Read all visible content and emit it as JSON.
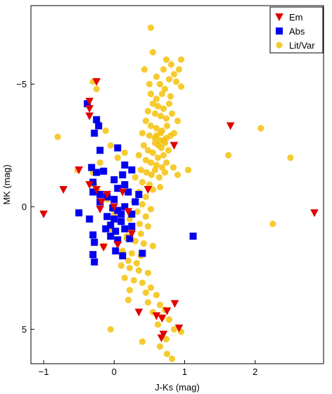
{
  "chart_data": {
    "type": "scatter",
    "title": "",
    "xlabel": "J-Ks (mag)",
    "ylabel": "MK (mag)",
    "xlim": [
      -1.18,
      2.97
    ],
    "ylim": [
      -8.2,
      6.4
    ],
    "y_inverted": true,
    "xticks": [
      {
        "value": -1,
        "label": "−1"
      },
      {
        "value": 0,
        "label": "0"
      },
      {
        "value": 1,
        "label": "1"
      },
      {
        "value": 2,
        "label": "2"
      }
    ],
    "yticks": [
      {
        "value": -5,
        "label": "−5"
      },
      {
        "value": 0,
        "label": "0"
      },
      {
        "value": 5,
        "label": "5"
      }
    ],
    "grid": false,
    "legend_position": "top-right",
    "series": [
      {
        "name": "Lit/Var",
        "marker": "circle",
        "color": "#f4c20d",
        "points": [
          [
            0.52,
            -7.3
          ],
          [
            0.55,
            -6.3
          ],
          [
            0.74,
            -6.0
          ],
          [
            0.81,
            -5.8
          ],
          [
            0.95,
            -6.0
          ],
          [
            0.7,
            -5.6
          ],
          [
            0.85,
            -5.4
          ],
          [
            0.92,
            -5.6
          ],
          [
            0.43,
            -5.6
          ],
          [
            0.78,
            -5.2
          ],
          [
            0.6,
            -5.3
          ],
          [
            0.5,
            -5.0
          ],
          [
            0.65,
            -5.0
          ],
          [
            0.88,
            -5.1
          ],
          [
            0.95,
            -4.9
          ],
          [
            0.72,
            -4.8
          ],
          [
            0.52,
            -4.6
          ],
          [
            0.6,
            -4.4
          ],
          [
            0.68,
            -4.6
          ],
          [
            0.8,
            -4.5
          ],
          [
            0.55,
            -4.2
          ],
          [
            0.62,
            -4.1
          ],
          [
            0.7,
            -4.0
          ],
          [
            0.78,
            -4.2
          ],
          [
            0.48,
            -3.9
          ],
          [
            0.58,
            -3.8
          ],
          [
            0.66,
            -3.7
          ],
          [
            0.74,
            -3.6
          ],
          [
            0.82,
            -3.8
          ],
          [
            0.9,
            -3.5
          ],
          [
            0.45,
            -3.5
          ],
          [
            0.52,
            -3.3
          ],
          [
            0.6,
            -3.2
          ],
          [
            0.68,
            -3.1
          ],
          [
            0.75,
            -3.3
          ],
          [
            0.85,
            -3.0
          ],
          [
            0.4,
            -3.0
          ],
          [
            0.5,
            -2.9
          ],
          [
            0.58,
            -2.8
          ],
          [
            0.65,
            -2.7
          ],
          [
            0.72,
            -2.6
          ],
          [
            0.8,
            -2.9
          ],
          [
            0.42,
            -2.5
          ],
          [
            0.48,
            -2.3
          ],
          [
            0.55,
            -2.2
          ],
          [
            0.62,
            -2.0
          ],
          [
            0.7,
            -2.1
          ],
          [
            0.77,
            -2.3
          ],
          [
            0.35,
            -2.1
          ],
          [
            0.45,
            -1.9
          ],
          [
            0.52,
            -1.8
          ],
          [
            0.6,
            -1.7
          ],
          [
            0.68,
            -1.6
          ],
          [
            0.74,
            -1.8
          ],
          [
            0.38,
            -1.5
          ],
          [
            0.46,
            -1.4
          ],
          [
            0.53,
            -1.3
          ],
          [
            0.58,
            -1.5
          ],
          [
            0.64,
            -1.2
          ],
          [
            0.72,
            -1.4
          ],
          [
            0.84,
            -1.6
          ],
          [
            0.9,
            -1.3
          ],
          [
            1.05,
            -1.5
          ],
          [
            0.3,
            -1.2
          ],
          [
            0.4,
            -1.0
          ],
          [
            0.5,
            -0.9
          ],
          [
            0.55,
            -0.7
          ],
          [
            0.65,
            -0.8
          ],
          [
            0.35,
            -0.6
          ],
          [
            0.45,
            -0.4
          ],
          [
            0.28,
            -0.2
          ],
          [
            0.4,
            -0.1
          ],
          [
            0.52,
            0.1
          ],
          [
            0.33,
            0.2
          ],
          [
            0.45,
            0.4
          ],
          [
            0.22,
            0.5
          ],
          [
            0.36,
            0.7
          ],
          [
            0.48,
            0.8
          ],
          [
            0.25,
            1.0
          ],
          [
            0.38,
            1.1
          ],
          [
            0.18,
            1.3
          ],
          [
            0.3,
            1.4
          ],
          [
            0.42,
            1.5
          ],
          [
            0.55,
            1.6
          ],
          [
            0.12,
            1.8
          ],
          [
            0.25,
            1.9
          ],
          [
            0.38,
            2.0
          ],
          [
            0.2,
            2.2
          ],
          [
            0.32,
            2.3
          ],
          [
            0.1,
            2.4
          ],
          [
            0.22,
            2.5
          ],
          [
            0.35,
            2.6
          ],
          [
            0.48,
            2.7
          ],
          [
            0.15,
            2.9
          ],
          [
            0.28,
            3.0
          ],
          [
            0.4,
            3.1
          ],
          [
            0.52,
            3.3
          ],
          [
            0.22,
            3.4
          ],
          [
            0.45,
            3.5
          ],
          [
            0.6,
            3.6
          ],
          [
            0.2,
            3.8
          ],
          [
            0.48,
            3.9
          ],
          [
            0.65,
            4.0
          ],
          [
            0.72,
            4.2
          ],
          [
            0.55,
            4.3
          ],
          [
            0.68,
            4.5
          ],
          [
            0.78,
            4.6
          ],
          [
            0.62,
            4.8
          ],
          [
            0.85,
            5.0
          ],
          [
            0.74,
            5.4
          ],
          [
            0.95,
            5.1
          ],
          [
            0.4,
            5.5
          ],
          [
            0.75,
            6.0
          ],
          [
            0.82,
            6.2
          ],
          [
            0.65,
            5.7
          ],
          [
            -0.05,
            5.0
          ],
          [
            -0.8,
            -2.85
          ],
          [
            -0.3,
            -5.1
          ],
          [
            -0.25,
            -4.8
          ],
          [
            -0.12,
            -3.1
          ],
          [
            -0.05,
            -2.5
          ],
          [
            0.15,
            -2.2
          ],
          [
            0.05,
            -2.0
          ],
          [
            -0.2,
            -1.8
          ],
          [
            -0.3,
            -1.4
          ],
          [
            -0.52,
            -1.5
          ],
          [
            -0.28,
            -0.9
          ],
          [
            -0.22,
            -0.6
          ],
          [
            -0.1,
            -0.3
          ],
          [
            0.0,
            0.3
          ],
          [
            0.08,
            0.6
          ],
          [
            -0.05,
            0.9
          ],
          [
            0.18,
            1.2
          ],
          [
            0.05,
            1.4
          ],
          [
            -0.15,
            1.6
          ],
          [
            0.12,
            1.9
          ],
          [
            1.62,
            -2.1
          ],
          [
            2.08,
            -3.2
          ],
          [
            2.5,
            -2.0
          ],
          [
            2.25,
            0.7
          ],
          [
            0.63,
            -2.5
          ],
          [
            0.67,
            -2.4
          ],
          [
            0.58,
            -2.6
          ],
          [
            0.7,
            -2.7
          ],
          [
            0.6,
            -2.9
          ],
          [
            0.66,
            -3.0
          ],
          [
            0.74,
            -2.8
          ]
        ]
      },
      {
        "name": "Abs",
        "marker": "square",
        "color": "#0000ee",
        "points": [
          [
            -0.38,
            -4.2
          ],
          [
            -0.25,
            -3.55
          ],
          [
            -0.22,
            -3.3
          ],
          [
            -0.28,
            -3.0
          ],
          [
            0.05,
            -2.4
          ],
          [
            -0.2,
            -2.3
          ],
          [
            -0.32,
            -1.6
          ],
          [
            -0.25,
            -1.4
          ],
          [
            -0.15,
            -1.45
          ],
          [
            -0.3,
            -1.0
          ],
          [
            0.12,
            -1.3
          ],
          [
            0.15,
            -1.7
          ],
          [
            0.25,
            -1.5
          ],
          [
            0.0,
            -1.1
          ],
          [
            -0.3,
            -0.6
          ],
          [
            -0.2,
            -0.5
          ],
          [
            -0.1,
            -0.4
          ],
          [
            -0.2,
            -0.2
          ],
          [
            0.0,
            -0.3
          ],
          [
            0.2,
            -0.6
          ],
          [
            0.35,
            -0.5
          ],
          [
            0.3,
            -0.2
          ],
          [
            0.15,
            0.0
          ],
          [
            -0.5,
            0.25
          ],
          [
            -0.35,
            0.5
          ],
          [
            -0.1,
            0.4
          ],
          [
            0.0,
            0.5
          ],
          [
            0.1,
            0.6
          ],
          [
            0.25,
            0.3
          ],
          [
            -0.05,
            0.75
          ],
          [
            -0.12,
            0.9
          ],
          [
            0.02,
            1.0
          ],
          [
            0.15,
            0.9
          ],
          [
            0.25,
            0.8
          ],
          [
            -0.05,
            1.2
          ],
          [
            -0.3,
            1.15
          ],
          [
            -0.28,
            1.45
          ],
          [
            0.05,
            1.35
          ],
          [
            0.22,
            1.3
          ],
          [
            -0.3,
            1.95
          ],
          [
            -0.28,
            2.25
          ],
          [
            0.02,
            1.8
          ],
          [
            0.12,
            2.0
          ],
          [
            0.4,
            1.9
          ],
          [
            1.12,
            1.2
          ],
          [
            0.1,
            0.3
          ],
          [
            0.15,
            -0.9
          ],
          [
            0.05,
            -0.75
          ],
          [
            -0.02,
            0.05
          ],
          [
            0.05,
            0.15
          ]
        ]
      },
      {
        "name": "Em",
        "marker": "triangle-down",
        "color": "#e00000",
        "points": [
          [
            -1.0,
            0.3
          ],
          [
            -0.72,
            -0.7
          ],
          [
            -0.35,
            -4.3
          ],
          [
            -0.35,
            -4.0
          ],
          [
            -0.35,
            -3.7
          ],
          [
            -0.25,
            -5.1
          ],
          [
            0.85,
            -2.5
          ],
          [
            1.65,
            -3.3
          ],
          [
            -0.5,
            -1.5
          ],
          [
            -0.35,
            -0.9
          ],
          [
            -0.25,
            -0.7
          ],
          [
            -0.1,
            -0.5
          ],
          [
            -0.18,
            -0.2
          ],
          [
            0.12,
            -0.6
          ],
          [
            0.48,
            -0.7
          ],
          [
            0.25,
            1.1
          ],
          [
            0.05,
            1.55
          ],
          [
            -0.15,
            1.65
          ],
          [
            0.35,
            4.3
          ],
          [
            0.6,
            4.45
          ],
          [
            0.75,
            4.25
          ],
          [
            0.68,
            4.55
          ],
          [
            0.86,
            3.95
          ],
          [
            0.92,
            4.95
          ],
          [
            0.7,
            5.2
          ],
          [
            0.67,
            5.35
          ],
          [
            2.84,
            0.25
          ],
          [
            -0.2,
            0.1
          ],
          [
            0.0,
            0.0
          ],
          [
            0.2,
            0.2
          ]
        ]
      }
    ]
  }
}
